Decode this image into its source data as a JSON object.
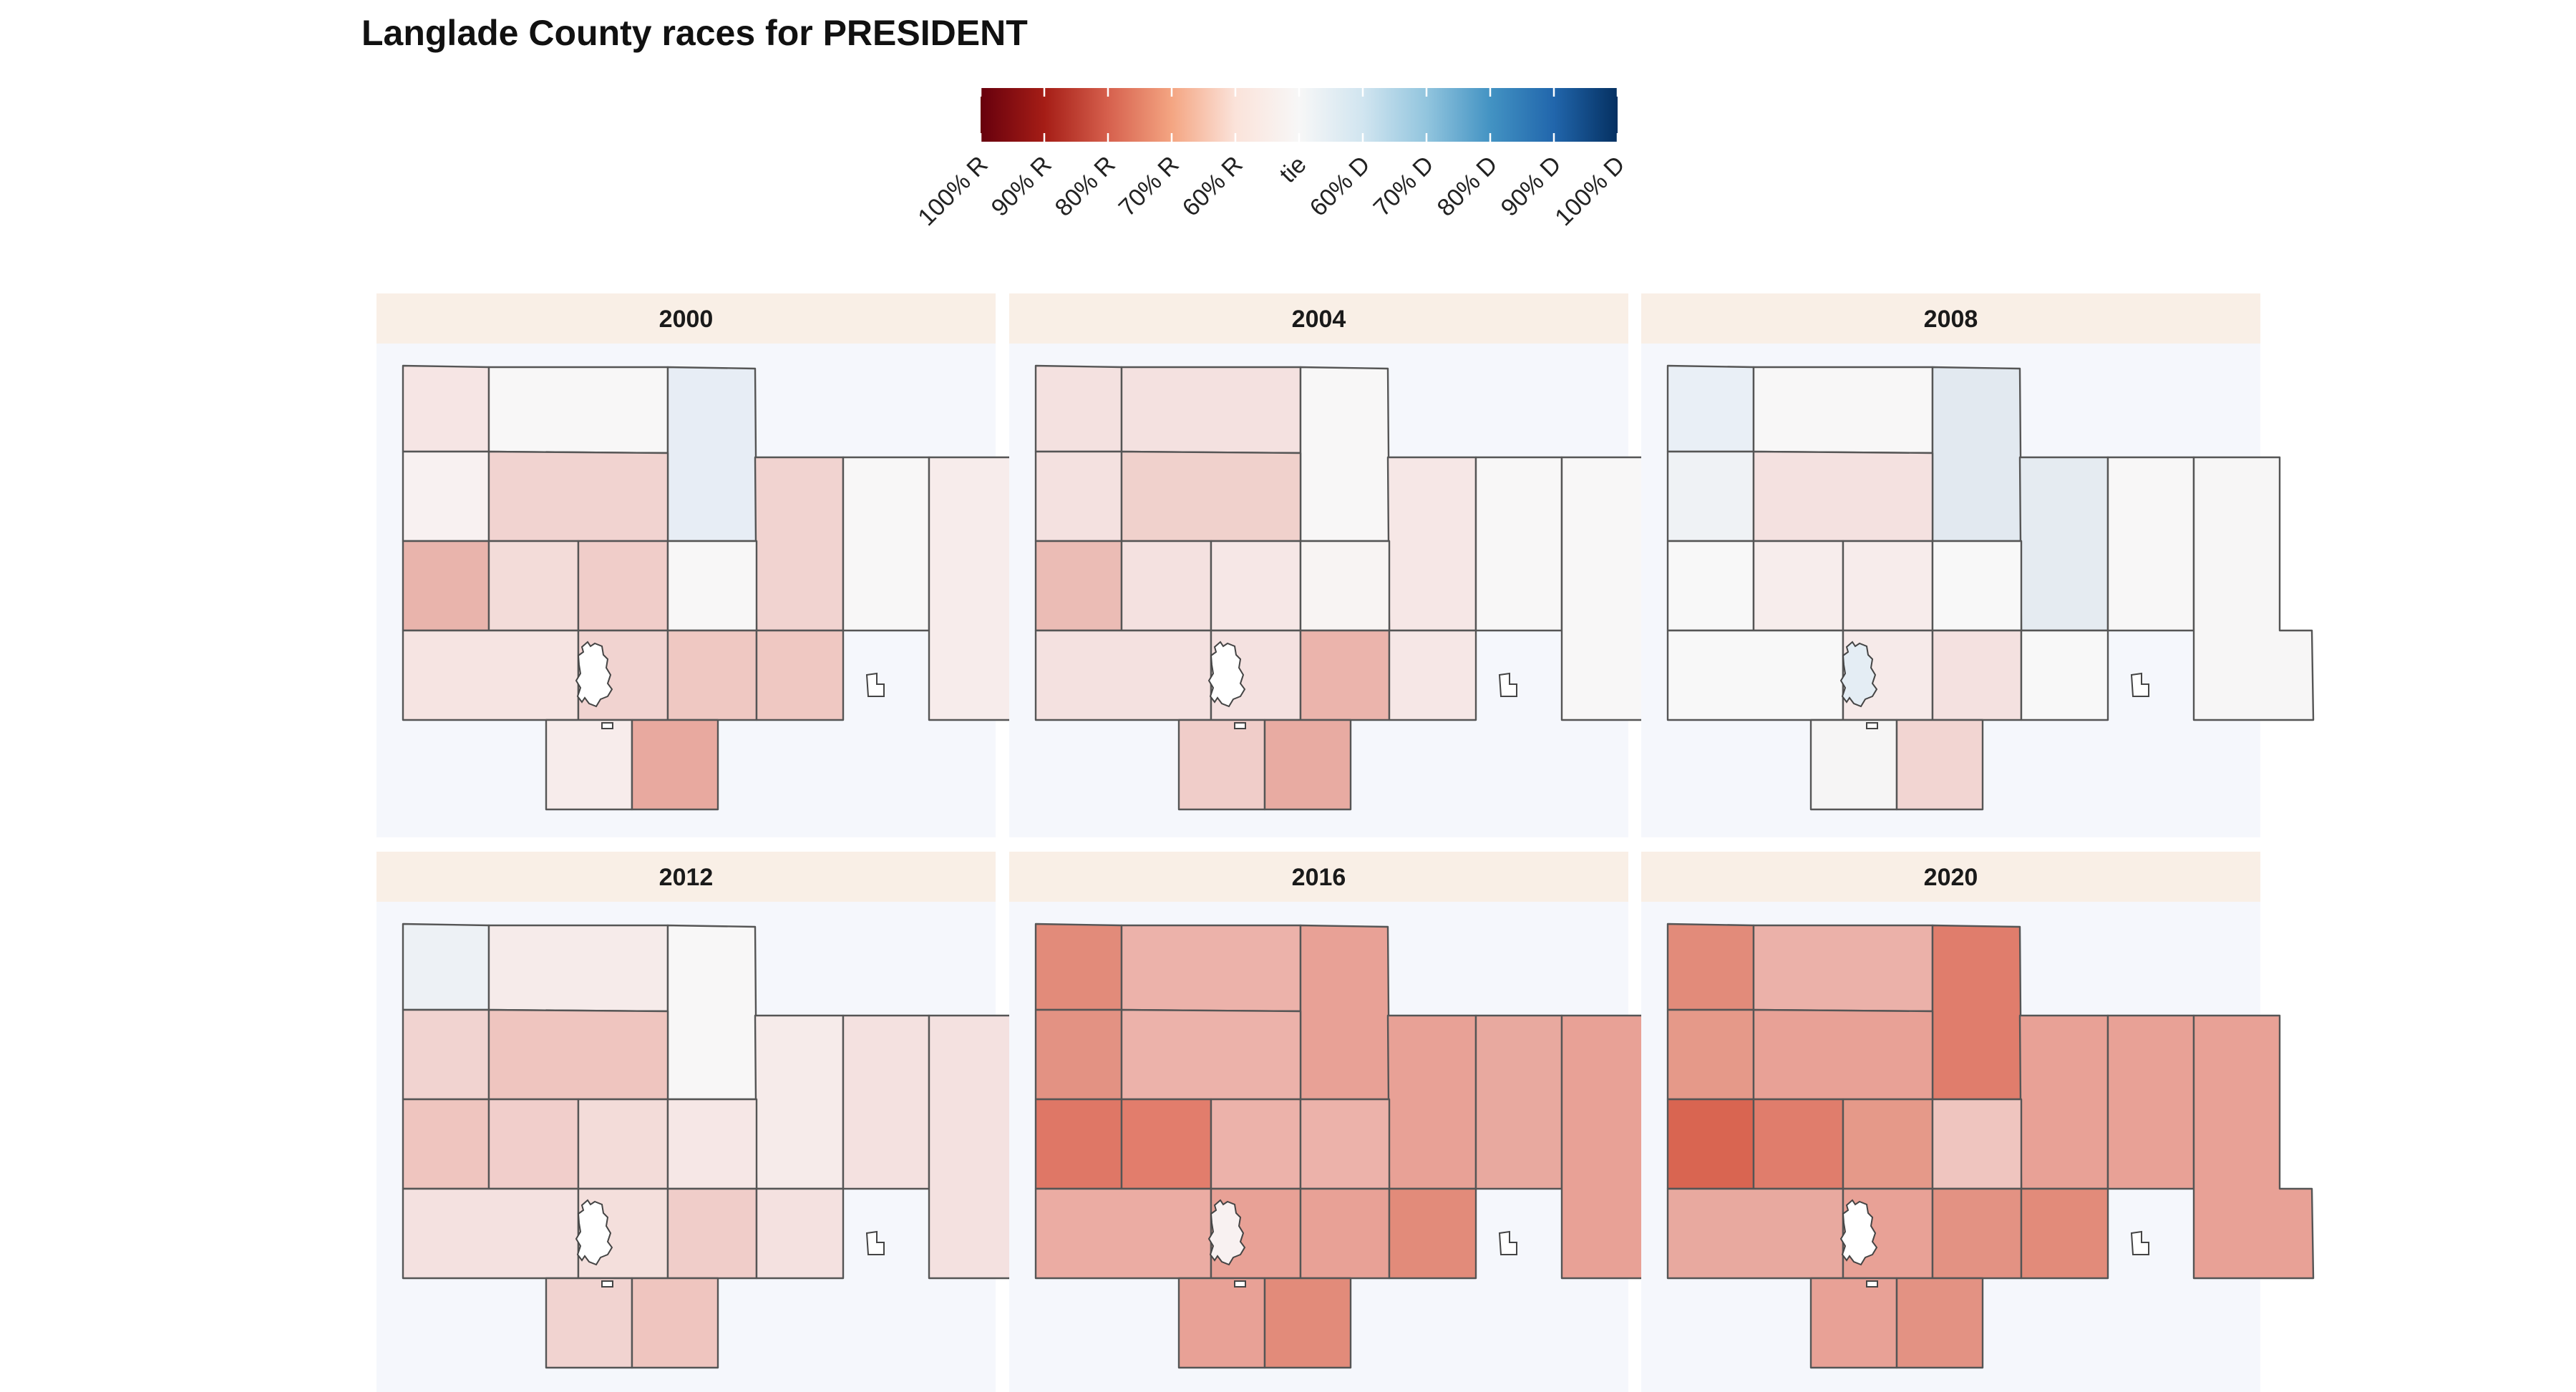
{
  "title": "Langlade County races for PRESIDENT",
  "legend": {
    "scale": "diverging red (Republican) to blue (Democratic) vote share",
    "tick_labels": [
      "100% R",
      "90% R",
      "80% R",
      "70% R",
      "60% R",
      "tie",
      "60% D",
      "70% D",
      "80% D",
      "90% D",
      "100% D"
    ],
    "gradient_colors": [
      "#67000d",
      "#a51d16",
      "#d6604d",
      "#f4a582",
      "#fbe3da",
      "#f7f7f7",
      "#d1e5f0",
      "#92c5de",
      "#4393c3",
      "#2166ac",
      "#053061"
    ]
  },
  "colors": {
    "panel_background": "#f5f7fc",
    "strip_background": "#f9efe6",
    "boundary_stroke": "#555555"
  },
  "panels": [
    {
      "year": "2000",
      "units": {
        "A": "#f6e5e4",
        "B": "#f8f7f7",
        "C": "#e7edf5",
        "D": "#f8f1f1",
        "E": "#f1d3d0",
        "F": "#f1d3d0",
        "G": "#e9b4ac",
        "H": "#f3dcd9",
        "I": "#f0cdc9",
        "J": "#f8f7f7",
        "K": "#f8f7f7",
        "L": "#f7eceb",
        "M": "#f6e4e2",
        "N": "#f1d3d0",
        "O": "#efc8c2",
        "P": "#efc8c2",
        "Q": "#f7eceb",
        "R": "#e8a99f",
        "city": "#ffffff"
      }
    },
    {
      "year": "2004",
      "units": {
        "A": "#f4e1e0",
        "B": "#f4e1e0",
        "C": "#f8f7f7",
        "D": "#f4e1e0",
        "E": "#f0d1cc",
        "F": "#f6e7e6",
        "G": "#ebbcb5",
        "H": "#f4e1e0",
        "I": "#f6e7e6",
        "J": "#f8f4f3",
        "K": "#f8f7f7",
        "L": "#f8f7f7",
        "M": "#f4e1e0",
        "N": "#f4e1e0",
        "O": "#ebb4ac",
        "P": "#f6e7e6",
        "Q": "#f0cdc9",
        "R": "#e8aba2",
        "city": "#ffffff"
      }
    },
    {
      "year": "2008",
      "units": {
        "A": "#e9eff6",
        "B": "#f8f7f7",
        "C": "#e2e9f0",
        "D": "#eff2f5",
        "E": "#f4e1e0",
        "F": "#e5ebf1",
        "G": "#f8f8f8",
        "H": "#f7edec",
        "I": "#f7eceb",
        "J": "#f8f8f8",
        "K": "#f8f7f7",
        "L": "#f7f6f6",
        "M": "#f8f8f8",
        "N": "#f6eae9",
        "O": "#f4e1e0",
        "P": "#f8f8f8",
        "Q": "#f6f5f5",
        "R": "#f2d5d2",
        "city": "#e4edf4"
      }
    },
    {
      "year": "2012",
      "units": {
        "A": "#edf1f5",
        "B": "#f6ebea",
        "C": "#f8f7f7",
        "D": "#f1d3d0",
        "E": "#efc5bf",
        "F": "#f6ebea",
        "G": "#efc5bf",
        "H": "#f1cecb",
        "I": "#f3dcd9",
        "J": "#f6e7e6",
        "K": "#f4e1e0",
        "L": "#f4e1e0",
        "M": "#f4e1e0",
        "N": "#f4dfdc",
        "O": "#f0cdc9",
        "P": "#f4e1e0",
        "Q": "#f1d3d0",
        "R": "#efc5bf",
        "city": "#ffffff"
      }
    },
    {
      "year": "2016",
      "units": {
        "A": "#e28b7a",
        "B": "#ecb2aa",
        "C": "#e8a196",
        "D": "#e39283",
        "E": "#ecb2aa",
        "F": "#e8a196",
        "G": "#df7766",
        "H": "#e27d6c",
        "I": "#ecb2aa",
        "J": "#ecb2aa",
        "K": "#e8a99f",
        "L": "#e8a196",
        "M": "#ebaca3",
        "N": "#e8a196",
        "O": "#e8a196",
        "P": "#e28b7a",
        "Q": "#e8a196",
        "R": "#e28b7a",
        "city": "#f8f1f1"
      }
    },
    {
      "year": "2020",
      "units": {
        "A": "#e28b7a",
        "B": "#ebb1a9",
        "C": "#e07d6c",
        "D": "#e59989",
        "E": "#e8a196",
        "F": "#e8a196",
        "G": "#d96551",
        "H": "#e07d6c",
        "I": "#e59989",
        "J": "#efc5bf",
        "K": "#e8a196",
        "L": "#e8a196",
        "M": "#e8a99f",
        "N": "#e8a196",
        "O": "#e39283",
        "P": "#e28b7a",
        "Q": "#e8a196",
        "R": "#e39283",
        "city": "#ffffff"
      }
    }
  ]
}
